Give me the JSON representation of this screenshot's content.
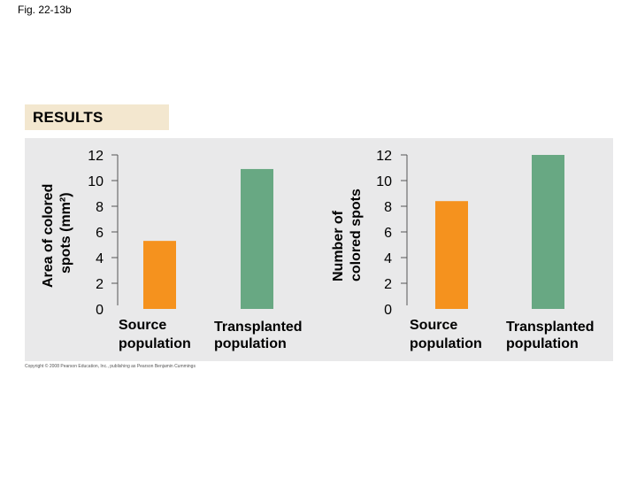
{
  "figure": {
    "label": "Fig. 22-13b"
  },
  "banner": {
    "results": "RESULTS"
  },
  "credit": "Copyright © 2008 Pearson Education, Inc., publishing as Pearson Benjamin Cummings",
  "colors": {
    "source": "#f5921e",
    "transplanted": "#68a883"
  },
  "chart_data": [
    {
      "type": "bar",
      "ylabel_line1": "Area of colored",
      "ylabel_line2": "spots (mm²)",
      "ylim": [
        0,
        12
      ],
      "yticks": [
        0,
        2,
        4,
        6,
        8,
        10,
        12
      ],
      "categories": [
        {
          "line1": "Source",
          "line2": "population"
        },
        {
          "line1": "Transplanted",
          "line2": "population"
        }
      ],
      "values": [
        5.3,
        10.9
      ]
    },
    {
      "type": "bar",
      "ylabel_line1": "Number of",
      "ylabel_line2": "colored spots",
      "ylim": [
        0,
        12
      ],
      "yticks": [
        0,
        2,
        4,
        6,
        8,
        10,
        12
      ],
      "categories": [
        {
          "line1": "Source",
          "line2": "population"
        },
        {
          "line1": "Transplanted",
          "line2": "population"
        }
      ],
      "values": [
        8.4,
        12
      ]
    }
  ]
}
